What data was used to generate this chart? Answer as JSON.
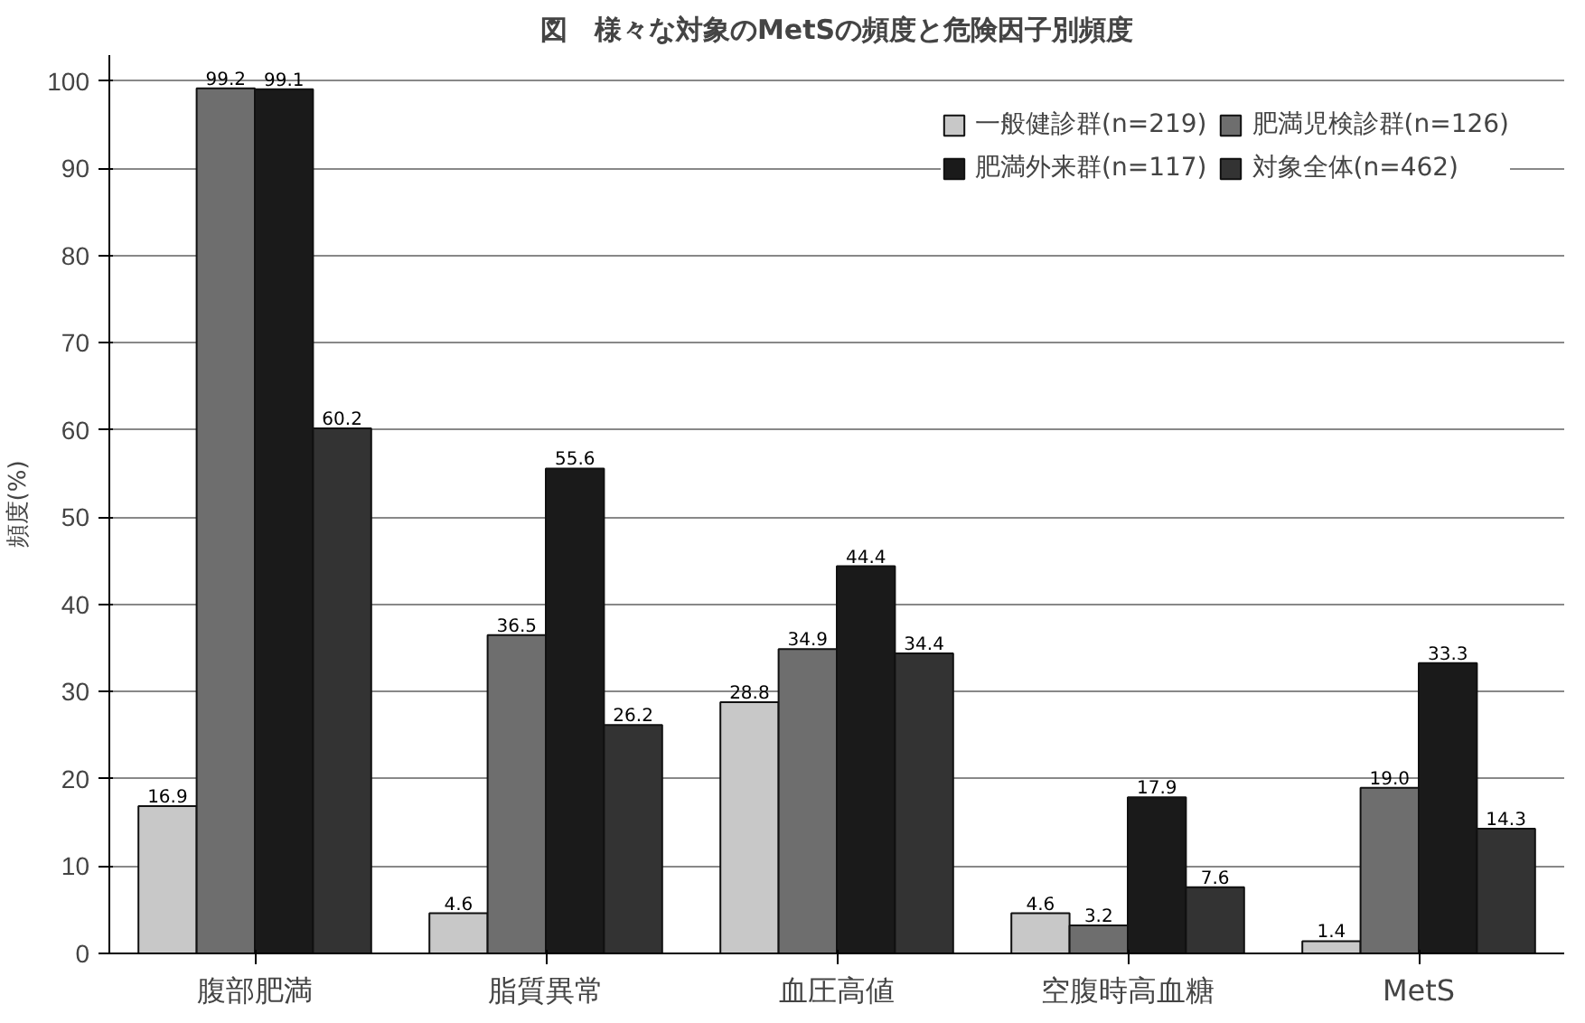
{
  "chart_data": {
    "type": "bar",
    "title": "図　様々な対象のMetSの頻度と危険因子別頻度",
    "ylabel": "頻度(%)",
    "categories": [
      "腹部肥満",
      "脂質異常",
      "血圧高値",
      "空腹時高血糖",
      "MetS"
    ],
    "series": [
      {
        "name": "一般健診群(n=219)",
        "color": "#c8c8c8",
        "values": [
          16.9,
          4.6,
          28.8,
          4.6,
          1.4
        ],
        "value_labels": [
          "16.9",
          "4.6",
          "28.8",
          "4.6",
          "1.4"
        ]
      },
      {
        "name": "肥満児検診群(n=126)",
        "color": "#6e6e6e",
        "values": [
          99.2,
          36.5,
          34.9,
          3.2,
          19.0
        ],
        "value_labels": [
          "99.2",
          "36.5",
          "34.9",
          "3.2",
          "19.0"
        ]
      },
      {
        "name": "肥満外来群(n=117)",
        "color": "#1a1a1a",
        "values": [
          99.1,
          55.6,
          44.4,
          17.9,
          33.3
        ],
        "value_labels": [
          "99.1",
          "55.6",
          "44.4",
          "17.9",
          "33.3"
        ]
      },
      {
        "name": "対象全体(n=462)",
        "color": "#333333",
        "values": [
          60.2,
          26.2,
          34.4,
          7.6,
          14.3
        ],
        "value_labels": [
          "60.2",
          "26.2",
          "34.4",
          "7.6",
          "14.3"
        ]
      }
    ],
    "ylim": [
      0,
      103
    ],
    "yticks": [
      0,
      10,
      20,
      30,
      40,
      50,
      60,
      70,
      80,
      90,
      100
    ],
    "grid": "y",
    "legend": "top right"
  }
}
